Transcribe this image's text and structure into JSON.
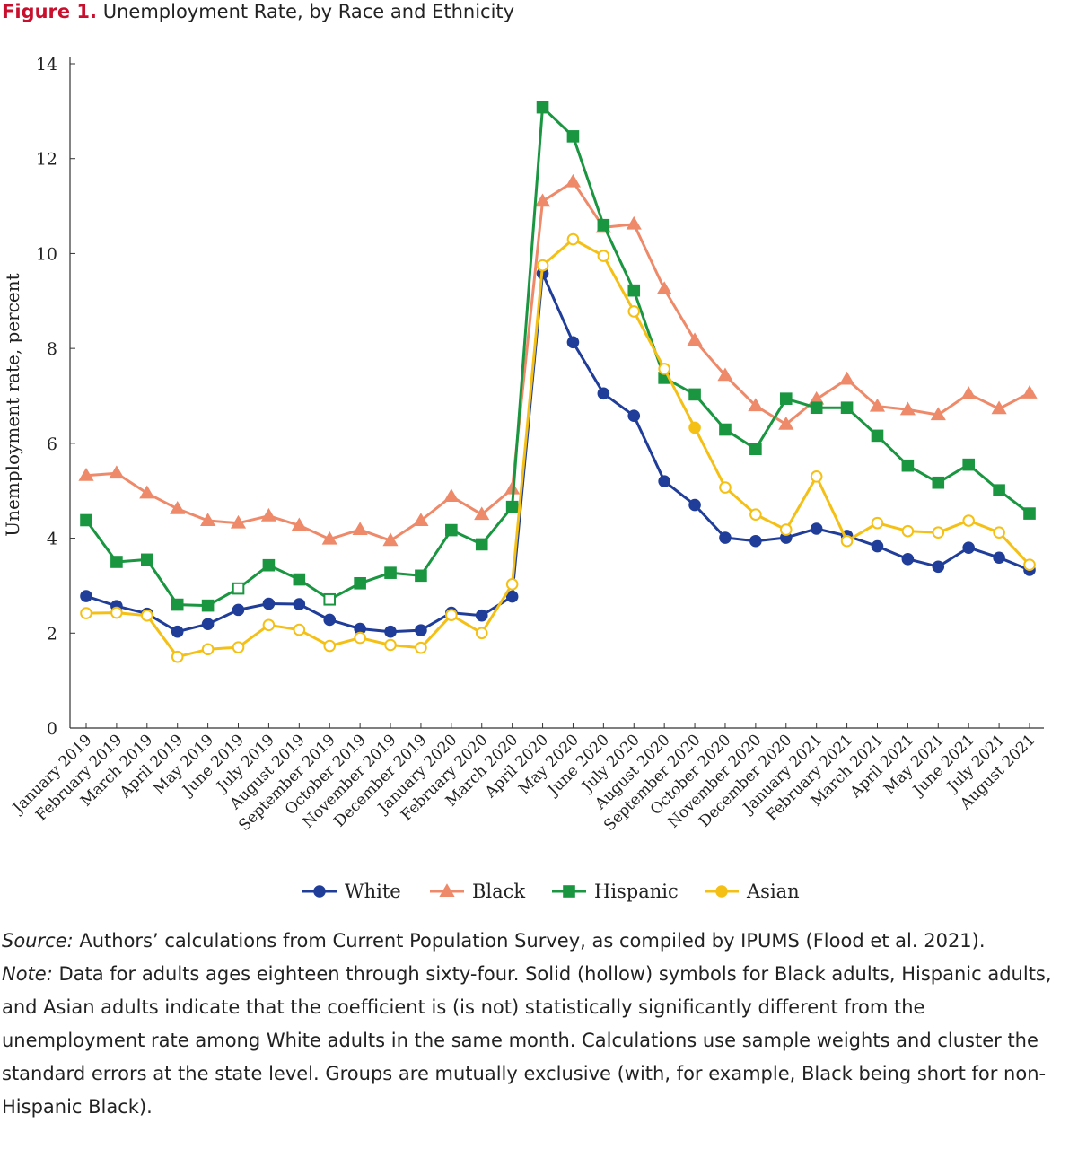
{
  "figure": {
    "label": "Figure 1.",
    "title": "Unemployment Rate, by Race and Ethnicity"
  },
  "chart_data": {
    "type": "line",
    "title": "Unemployment Rate, by Race and Ethnicity",
    "ylabel": "Unemployment rate, percent",
    "xlabel": "",
    "ylim": [
      0,
      14
    ],
    "yticks": [
      0,
      2,
      4,
      6,
      8,
      10,
      12,
      14
    ],
    "grid": false,
    "legend_position": "bottom",
    "categories": [
      "January 2019",
      "February 2019",
      "March 2019",
      "April 2019",
      "May 2019",
      "June 2019",
      "July 2019",
      "August 2019",
      "September 2019",
      "October 2019",
      "November 2019",
      "December 2019",
      "January 2020",
      "February 2020",
      "March 2020",
      "April 2020",
      "May 2020",
      "June 2020",
      "July 2020",
      "August 2020",
      "September 2020",
      "October 2020",
      "November 2020",
      "December 2020",
      "January 2021",
      "February 2021",
      "March 2021",
      "April 2021",
      "May 2021",
      "June 2021",
      "July 2021",
      "August 2021"
    ],
    "series": [
      {
        "name": "White",
        "color": "#1f3d99",
        "marker": "circle",
        "values": [
          2.78,
          2.57,
          2.41,
          2.03,
          2.19,
          2.49,
          2.62,
          2.61,
          2.28,
          2.09,
          2.03,
          2.06,
          2.43,
          2.37,
          2.77,
          9.58,
          8.13,
          7.05,
          6.58,
          5.2,
          4.7,
          4.01,
          3.94,
          4.01,
          4.2,
          4.05,
          3.83,
          3.56,
          3.4,
          3.8,
          3.59,
          3.33
        ],
        "hollow": []
      },
      {
        "name": "Black",
        "color": "#ee8a6a",
        "marker": "triangle",
        "values": [
          5.32,
          5.37,
          4.95,
          4.62,
          4.37,
          4.32,
          4.47,
          4.27,
          3.98,
          4.18,
          3.95,
          4.37,
          4.88,
          4.5,
          5.04,
          11.1,
          11.51,
          10.55,
          10.62,
          9.25,
          8.17,
          7.43,
          6.79,
          6.4,
          6.93,
          7.35,
          6.78,
          6.71,
          6.6,
          7.04,
          6.73,
          7.06
        ],
        "hollow": []
      },
      {
        "name": "Hispanic",
        "color": "#1a9641",
        "marker": "square",
        "values": [
          4.38,
          3.5,
          3.55,
          2.6,
          2.58,
          2.94,
          3.43,
          3.13,
          2.71,
          3.05,
          3.27,
          3.21,
          4.17,
          3.87,
          4.66,
          13.08,
          12.47,
          10.6,
          9.22,
          7.38,
          7.03,
          6.29,
          5.88,
          6.94,
          6.75,
          6.75,
          6.16,
          5.53,
          5.17,
          5.55,
          5.01,
          4.52
        ],
        "hollow": [
          5,
          8
        ]
      },
      {
        "name": "Asian",
        "color": "#f5c016",
        "marker": "circle",
        "values": [
          2.42,
          2.43,
          2.37,
          1.5,
          1.66,
          1.7,
          2.17,
          2.07,
          1.73,
          1.9,
          1.75,
          1.69,
          2.38,
          2.0,
          3.03,
          9.75,
          10.3,
          9.95,
          8.78,
          7.57,
          6.33,
          5.07,
          4.5,
          4.18,
          5.3,
          3.94,
          4.32,
          4.15,
          4.12,
          4.37,
          4.12,
          3.44
        ],
        "hollow": [
          0,
          1,
          2,
          3,
          4,
          5,
          6,
          7,
          8,
          9,
          10,
          11,
          12,
          13,
          14,
          15,
          16,
          17,
          18,
          19,
          21,
          22,
          23,
          24,
          25,
          26,
          27,
          28,
          29,
          30,
          31
        ]
      }
    ]
  },
  "notes": {
    "source_label": "Source:",
    "source_text": " Authors’ calculations from Current Population Survey, as compiled by IPUMS (Flood et al. 2021).",
    "note_label": "Note:",
    "note_text": " Data for adults ages eighteen through sixty-four. Solid (hollow) symbols for Black adults, Hispanic adults, and Asian adults indicate that the coefficient is (is not) statistically significantly different from the unemployment rate among White adults in the same month. Calculations use sample weights and cluster the standard errors at the state level. Groups are mutually exclusive (with, for example, Black being short for non-Hispanic Black)."
  }
}
